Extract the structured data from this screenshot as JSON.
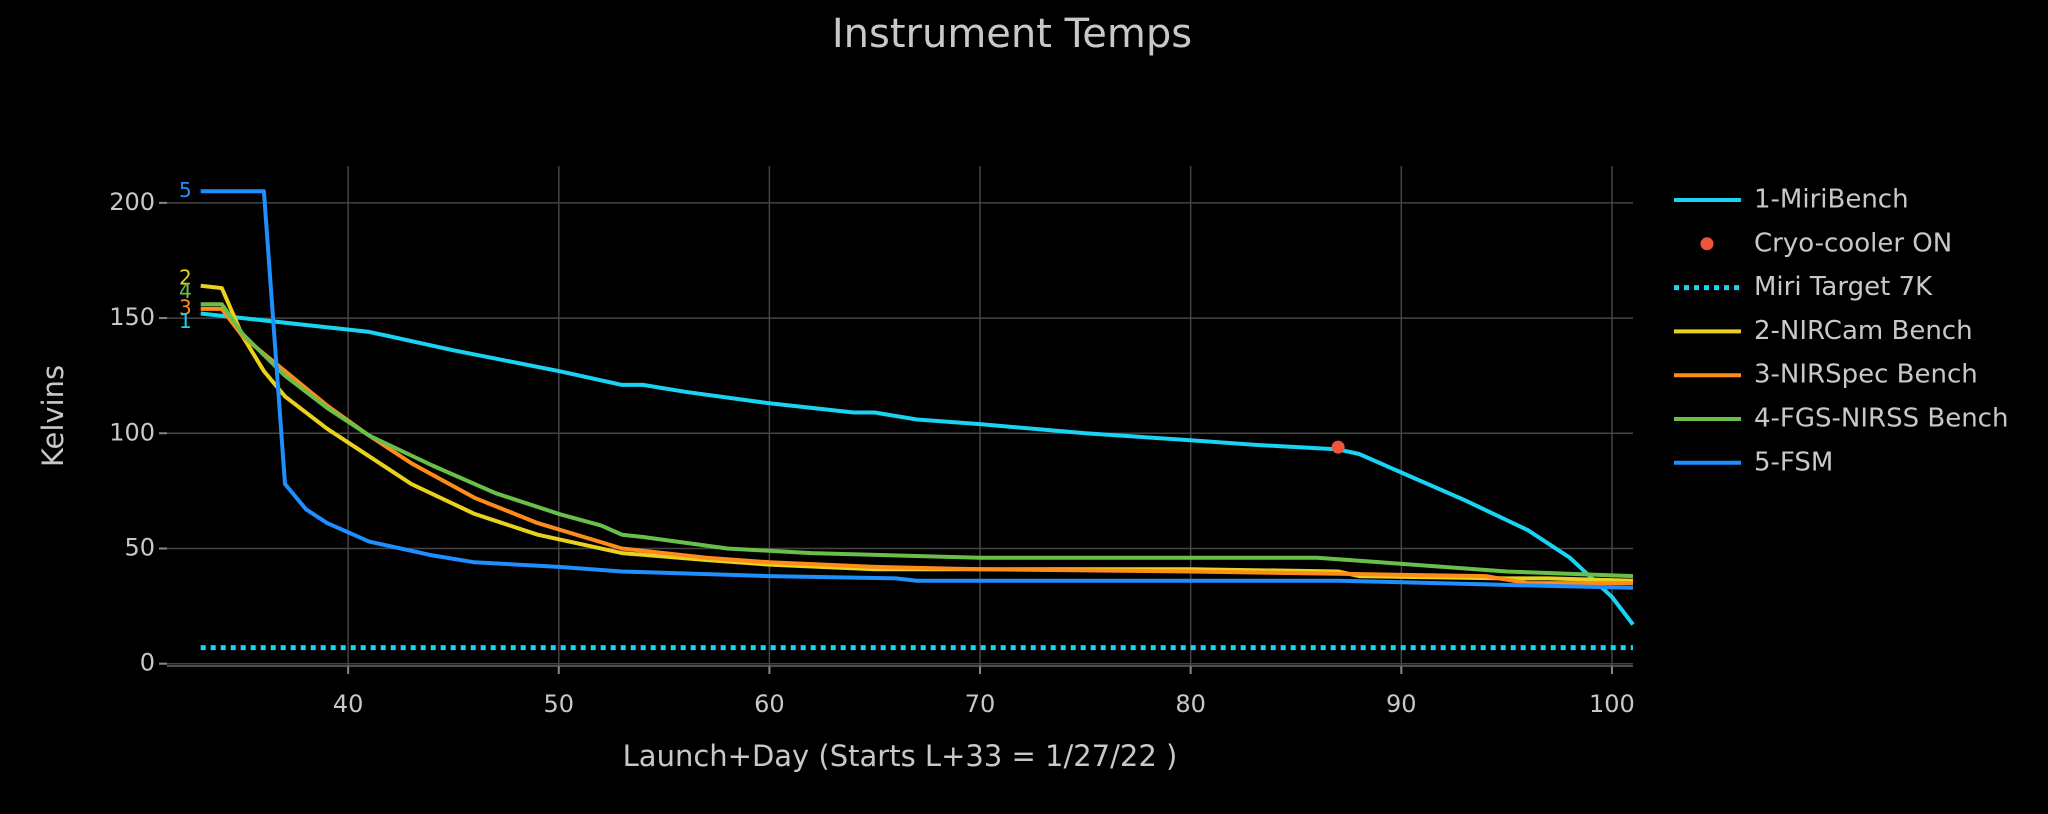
{
  "chart_data": {
    "type": "line",
    "title": "Instrument Temps",
    "x_label": "Launch+Day (Starts L+33 = 1/27/22 )",
    "y_label": "Kelvins",
    "xlim": [
      31.4,
      101
    ],
    "ylim": [
      -1,
      216
    ],
    "xticks": [
      40,
      50,
      60,
      70,
      80,
      90,
      100
    ],
    "yticks": [
      0,
      50,
      100,
      150,
      200
    ],
    "grid": true,
    "series": [
      {
        "name": "1-MiriBench",
        "color": "#19d3f3",
        "mode": "lines",
        "x": [
          33,
          35,
          38,
          41,
          45,
          50,
          53,
          54,
          56,
          60,
          64,
          65,
          67,
          70,
          75,
          80,
          83,
          87,
          88,
          90,
          93,
          96,
          98,
          100,
          101
        ],
        "values": [
          152,
          150,
          147,
          144,
          136,
          127,
          121,
          121,
          118,
          113,
          109,
          109,
          106,
          104,
          100,
          97,
          95,
          93,
          91,
          83,
          71,
          58,
          46,
          29,
          17
        ]
      },
      {
        "name": "Cryo-cooler ON",
        "color": "#ef553b",
        "mode": "markers",
        "x": [
          87
        ],
        "values": [
          94
        ]
      },
      {
        "name": "Miri Target 7K",
        "color": "#19d3f3",
        "mode": "dots",
        "x": [
          33,
          101
        ],
        "values": [
          7,
          7
        ]
      },
      {
        "name": "2-NIRCam Bench",
        "color": "#e8d21d",
        "mode": "lines",
        "x": [
          33,
          34,
          35,
          36,
          37,
          39,
          41,
          43,
          46,
          49,
          53,
          57,
          60,
          65,
          70,
          80,
          87,
          88,
          95,
          97,
          101
        ],
        "values": [
          164,
          163,
          142,
          127,
          116,
          102,
          90,
          78,
          65,
          56,
          48,
          45,
          43,
          41,
          41,
          41,
          40,
          38,
          37,
          37,
          36
        ]
      },
      {
        "name": "3-NIRSpec Bench",
        "color": "#ff8c1a",
        "mode": "lines",
        "x": [
          33,
          34,
          35,
          37,
          39,
          41,
          43,
          46,
          49,
          53,
          57,
          60,
          65,
          70,
          80,
          87,
          94,
          96,
          101
        ],
        "values": [
          154,
          154,
          142,
          127,
          112,
          99,
          87,
          72,
          61,
          50,
          46,
          44,
          42,
          41,
          40,
          39,
          38,
          35,
          35
        ]
      },
      {
        "name": "4-FGS-NIRSS Bench",
        "color": "#6abf4b",
        "mode": "lines",
        "x": [
          33,
          34,
          35,
          37,
          39,
          41,
          44,
          47,
          50,
          52,
          53,
          54,
          58,
          62,
          70,
          80,
          86,
          89,
          95,
          101
        ],
        "values": [
          156,
          156,
          143,
          125,
          111,
          99,
          86,
          74,
          65,
          60,
          56,
          55,
          50,
          48,
          46,
          46,
          46,
          44,
          40,
          38
        ]
      },
      {
        "name": "5-FSM",
        "color": "#1e8fff",
        "mode": "lines",
        "x": [
          33,
          36,
          37,
          38,
          39,
          41,
          44,
          46,
          50,
          53,
          60,
          66,
          67,
          80,
          87,
          96,
          101
        ],
        "values": [
          205,
          205,
          78,
          67,
          61,
          53,
          47,
          44,
          42,
          40,
          38,
          37,
          36,
          36,
          36,
          34,
          33
        ]
      }
    ],
    "annotations": [
      {
        "text": "5",
        "color": "#1e8fff",
        "y": 205
      },
      {
        "text": "2",
        "color": "#e8d21d",
        "y": 167
      },
      {
        "text": "4",
        "color": "#6abf4b",
        "y": 161
      },
      {
        "text": "3",
        "color": "#ff8c1a",
        "y": 154
      },
      {
        "text": "1",
        "color": "#19d3f3",
        "y": 148
      }
    ]
  }
}
